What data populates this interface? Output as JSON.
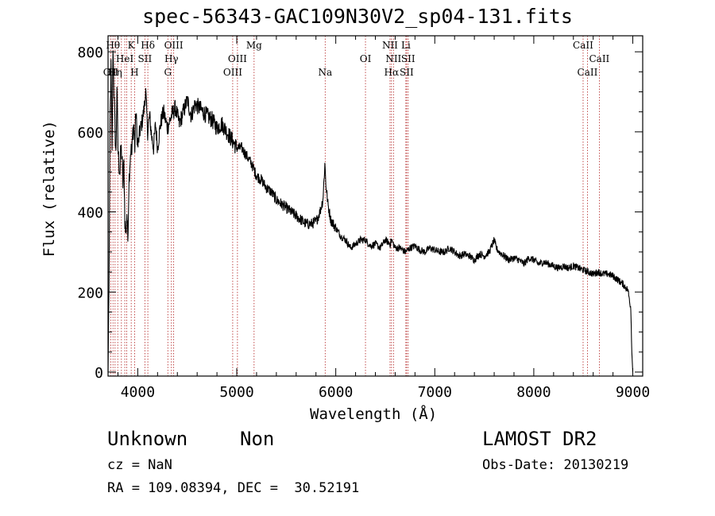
{
  "title": "spec-56343-GAC109N30V2_sp04-131.fits",
  "footer": {
    "class": "Unknown",
    "subclass": "Non",
    "survey": "LAMOST DR2",
    "cz": "cz = NaN",
    "obs_date": "Obs-Date: 20130219",
    "radec": "RA = 109.08394, DEC =  30.52191"
  },
  "chart_data": {
    "type": "line",
    "title": "spec-56343-GAC109N30V2_sp04-131.fits",
    "xlabel": "Wavelength (Å)",
    "ylabel": "Flux (relative)",
    "xlim": [
      3700,
      9100
    ],
    "ylim": [
      -10,
      840
    ],
    "xticks": [
      4000,
      5000,
      6000,
      7000,
      8000,
      9000
    ],
    "yticks": [
      0,
      200,
      400,
      600,
      800
    ],
    "grid": false,
    "series": [
      {
        "x": [
          3700,
          3710,
          3720,
          3730,
          3740,
          3750,
          3760,
          3770,
          3780,
          3790,
          3800,
          3810,
          3820,
          3830,
          3840,
          3850,
          3860,
          3870,
          3880,
          3890,
          3900,
          3910,
          3920,
          3930,
          3940,
          3950,
          3960,
          3970,
          3980,
          3990,
          4000,
          4020,
          4040,
          4060,
          4080,
          4100,
          4120,
          4140,
          4160,
          4180,
          4200,
          4230,
          4260,
          4300,
          4340,
          4380,
          4420,
          4460,
          4500,
          4540,
          4580,
          4620,
          4660,
          4700,
          4750,
          4800,
          4850,
          4900,
          4950,
          5000,
          5050,
          5100,
          5150,
          5200,
          5250,
          5300,
          5350,
          5400,
          5450,
          5500,
          5550,
          5600,
          5650,
          5700,
          5750,
          5800,
          5840,
          5870,
          5890,
          5900,
          5920,
          5950,
          6000,
          6050,
          6100,
          6150,
          6200,
          6250,
          6300,
          6350,
          6400,
          6450,
          6500,
          6550,
          6563,
          6600,
          6650,
          6700,
          6750,
          6800,
          6850,
          6900,
          6950,
          7000,
          7050,
          7100,
          7150,
          7200,
          7250,
          7300,
          7350,
          7400,
          7450,
          7500,
          7550,
          7600,
          7620,
          7650,
          7700,
          7750,
          7800,
          7850,
          7900,
          7950,
          8000,
          8050,
          8100,
          8150,
          8200,
          8250,
          8300,
          8350,
          8400,
          8450,
          8500,
          8550,
          8600,
          8650,
          8700,
          8750,
          8800,
          8850,
          8900,
          8950,
          8980,
          8990,
          9000
        ],
        "y": [
          0,
          220,
          620,
          760,
          540,
          820,
          700,
          610,
          540,
          720,
          560,
          520,
          500,
          560,
          540,
          470,
          520,
          380,
          340,
          400,
          330,
          470,
          520,
          560,
          540,
          600,
          620,
          560,
          650,
          610,
          560,
          600,
          620,
          650,
          700,
          600,
          640,
          590,
          560,
          620,
          560,
          620,
          650,
          610,
          640,
          660,
          620,
          650,
          680,
          640,
          670,
          660,
          650,
          640,
          630,
          610,
          620,
          600,
          580,
          560,
          560,
          540,
          520,
          490,
          480,
          460,
          450,
          430,
          420,
          410,
          400,
          390,
          380,
          370,
          370,
          375,
          400,
          430,
          520,
          470,
          420,
          380,
          360,
          340,
          330,
          310,
          320,
          330,
          330,
          315,
          320,
          310,
          330,
          320,
          330,
          310,
          310,
          300,
          310,
          315,
          305,
          300,
          310,
          305,
          300,
          300,
          310,
          300,
          290,
          295,
          290,
          280,
          295,
          290,
          300,
          330,
          310,
          300,
          290,
          280,
          285,
          280,
          270,
          285,
          280,
          270,
          275,
          270,
          265,
          260,
          265,
          260,
          265,
          260,
          255,
          250,
          245,
          250,
          245,
          245,
          240,
          230,
          220,
          205,
          160,
          50,
          0
        ]
      }
    ],
    "lines": [
      {
        "wave": 3727,
        "label": "OII",
        "row": 3
      },
      {
        "wave": 3750,
        "label": "Hθ",
        "row": 1
      },
      {
        "wave": 3771,
        "label": "Hη",
        "row": 3
      },
      {
        "wave": 3798,
        "label": "",
        "row": 0
      },
      {
        "wave": 3835,
        "label": "",
        "row": 0
      },
      {
        "wave": 3869,
        "label": "HeI",
        "row": 2
      },
      {
        "wave": 3889,
        "label": "",
        "row": 0
      },
      {
        "wave": 3934,
        "label": "K",
        "row": 1
      },
      {
        "wave": 3968,
        "label": "H",
        "row": 3
      },
      {
        "wave": 4072,
        "label": "SII",
        "row": 2
      },
      {
        "wave": 4102,
        "label": "Hδ",
        "row": 1
      },
      {
        "wave": 4304,
        "label": "G",
        "row": 3
      },
      {
        "wave": 4340,
        "label": "Hγ",
        "row": 2
      },
      {
        "wave": 4363,
        "label": "OIII",
        "row": 1
      },
      {
        "wave": 4959,
        "label": "OIII",
        "row": 3
      },
      {
        "wave": 5007,
        "label": "OIII",
        "row": 2
      },
      {
        "wave": 5175,
        "label": "Mg",
        "row": 1
      },
      {
        "wave": 5893,
        "label": "Na",
        "row": 3
      },
      {
        "wave": 6300,
        "label": "OI",
        "row": 2
      },
      {
        "wave": 6548,
        "label": "NII",
        "row": 1
      },
      {
        "wave": 6563,
        "label": "Hα",
        "row": 3
      },
      {
        "wave": 6583,
        "label": "NII",
        "row": 2
      },
      {
        "wave": 6708,
        "label": "Li",
        "row": 1
      },
      {
        "wave": 6716,
        "label": "SII",
        "row": 3
      },
      {
        "wave": 6731,
        "label": "SII",
        "row": 2
      },
      {
        "wave": 8498,
        "label": "CaII",
        "row": 1
      },
      {
        "wave": 8542,
        "label": "CaII",
        "row": 3
      },
      {
        "wave": 8662,
        "label": "CaII",
        "row": 2
      }
    ]
  }
}
